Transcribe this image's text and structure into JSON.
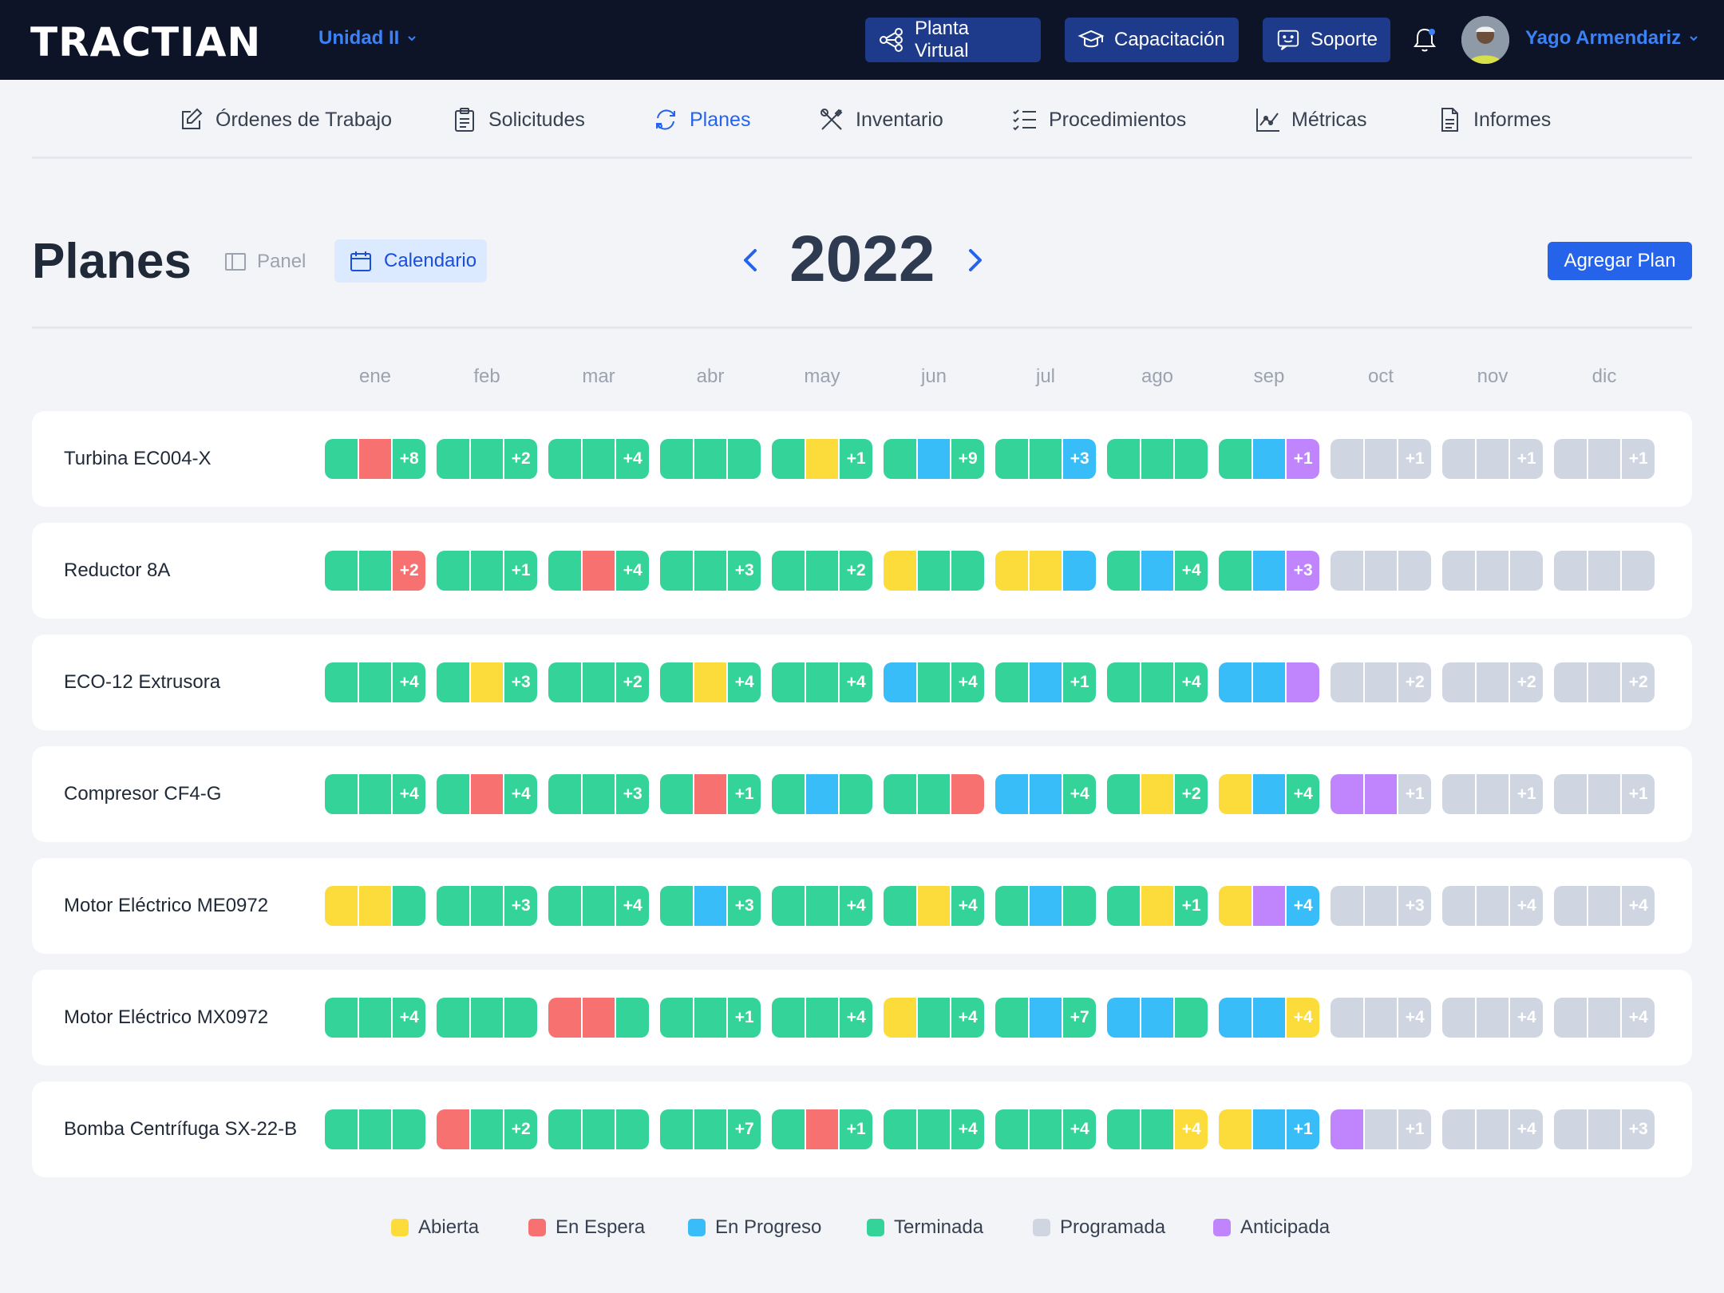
{
  "app": {
    "logo": "TRACTIAN",
    "unit": "Unidad II"
  },
  "topbar": {
    "planta_label": "Planta Virtual",
    "capacitacion_label": "Capacitación",
    "soporte_label": "Soporte",
    "user_name": "Yago Armendariz"
  },
  "nav": [
    {
      "label": "Órdenes de Trabajo",
      "icon": "edit-icon",
      "active": false
    },
    {
      "label": "Solicitudes",
      "icon": "clipboard-icon",
      "active": false
    },
    {
      "label": "Planes",
      "icon": "refresh-icon",
      "active": true
    },
    {
      "label": "Inventario",
      "icon": "tools-icon",
      "active": false
    },
    {
      "label": "Procedimientos",
      "icon": "checklist-icon",
      "active": false
    },
    {
      "label": "Métricas",
      "icon": "chart-icon",
      "active": false
    },
    {
      "label": "Informes",
      "icon": "document-icon",
      "active": false
    }
  ],
  "page": {
    "title": "Planes",
    "view_panel": "Panel",
    "view_calendar": "Calendario",
    "year": "2022",
    "add_plan": "Agregar Plan"
  },
  "colors": {
    "Y": "#fcdc3b",
    "R": "#f87171",
    "B": "#38bdf8",
    "G": "#34d399",
    "S": "#cfd6e1",
    "P": "#c084fc"
  },
  "months": [
    "ene",
    "feb",
    "mar",
    "abr",
    "may",
    "jun",
    "jul",
    "ago",
    "sep",
    "oct",
    "nov",
    "dic"
  ],
  "rows": [
    {
      "name": "Turbina EC004-X",
      "cells": [
        {
          "s": [
            "G",
            "R"
          ],
          "x": "+8",
          "xs": "G"
        },
        {
          "s": [
            "G",
            "G"
          ],
          "x": "+2",
          "xs": "G"
        },
        {
          "s": [
            "G",
            "G"
          ],
          "x": "+4",
          "xs": "G"
        },
        {
          "s": [
            "G",
            "G",
            "G"
          ],
          "x": ""
        },
        {
          "s": [
            "G",
            "Y"
          ],
          "x": "+1",
          "xs": "G"
        },
        {
          "s": [
            "G",
            "B"
          ],
          "x": "+9",
          "xs": "G"
        },
        {
          "s": [
            "G",
            "G"
          ],
          "x": "+3",
          "xs": "B"
        },
        {
          "s": [
            "G",
            "G",
            "G"
          ],
          "x": ""
        },
        {
          "s": [
            "G",
            "B"
          ],
          "x": "+1",
          "xs": "P"
        },
        {
          "s": [
            "S",
            "S"
          ],
          "x": "+1",
          "xs": "S"
        },
        {
          "s": [
            "S",
            "S"
          ],
          "x": "+1",
          "xs": "S"
        },
        {
          "s": [
            "S",
            "S"
          ],
          "x": "+1",
          "xs": "S"
        }
      ]
    },
    {
      "name": "Reductor 8A",
      "cells": [
        {
          "s": [
            "G",
            "G"
          ],
          "x": "+2",
          "xs": "R"
        },
        {
          "s": [
            "G",
            "G"
          ],
          "x": "+1",
          "xs": "G"
        },
        {
          "s": [
            "G",
            "R"
          ],
          "x": "+4",
          "xs": "G"
        },
        {
          "s": [
            "G",
            "G"
          ],
          "x": "+3",
          "xs": "G"
        },
        {
          "s": [
            "G",
            "G"
          ],
          "x": "+2",
          "xs": "G"
        },
        {
          "s": [
            "Y",
            "G",
            "G"
          ],
          "x": ""
        },
        {
          "s": [
            "Y",
            "Y",
            "B"
          ],
          "x": ""
        },
        {
          "s": [
            "G",
            "B"
          ],
          "x": "+4",
          "xs": "G"
        },
        {
          "s": [
            "G",
            "B"
          ],
          "x": "+3",
          "xs": "P"
        },
        {
          "s": [
            "S",
            "S",
            "S"
          ],
          "x": ""
        },
        {
          "s": [
            "S",
            "S",
            "S"
          ],
          "x": ""
        },
        {
          "s": [
            "S",
            "S",
            "S"
          ],
          "x": ""
        }
      ]
    },
    {
      "name": "ECO-12 Extrusora",
      "cells": [
        {
          "s": [
            "G",
            "G"
          ],
          "x": "+4",
          "xs": "G"
        },
        {
          "s": [
            "G",
            "Y"
          ],
          "x": "+3",
          "xs": "G"
        },
        {
          "s": [
            "G",
            "G"
          ],
          "x": "+2",
          "xs": "G"
        },
        {
          "s": [
            "G",
            "Y"
          ],
          "x": "+4",
          "xs": "G"
        },
        {
          "s": [
            "G",
            "G"
          ],
          "x": "+4",
          "xs": "G"
        },
        {
          "s": [
            "B",
            "G"
          ],
          "x": "+4",
          "xs": "G"
        },
        {
          "s": [
            "G",
            "B"
          ],
          "x": "+1",
          "xs": "G"
        },
        {
          "s": [
            "G",
            "G"
          ],
          "x": "+4",
          "xs": "G"
        },
        {
          "s": [
            "B",
            "B",
            "P"
          ],
          "x": ""
        },
        {
          "s": [
            "S",
            "S"
          ],
          "x": "+2",
          "xs": "S"
        },
        {
          "s": [
            "S",
            "S"
          ],
          "x": "+2",
          "xs": "S"
        },
        {
          "s": [
            "S",
            "S"
          ],
          "x": "+2",
          "xs": "S"
        }
      ]
    },
    {
      "name": "Compresor CF4-G",
      "cells": [
        {
          "s": [
            "G",
            "G"
          ],
          "x": "+4",
          "xs": "G"
        },
        {
          "s": [
            "G",
            "R"
          ],
          "x": "+4",
          "xs": "G"
        },
        {
          "s": [
            "G",
            "G"
          ],
          "x": "+3",
          "xs": "G"
        },
        {
          "s": [
            "G",
            "R"
          ],
          "x": "+1",
          "xs": "G"
        },
        {
          "s": [
            "G",
            "B",
            "G"
          ],
          "x": ""
        },
        {
          "s": [
            "G",
            "G",
            "R"
          ],
          "x": ""
        },
        {
          "s": [
            "B",
            "B"
          ],
          "x": "+4",
          "xs": "G"
        },
        {
          "s": [
            "G",
            "Y"
          ],
          "x": "+2",
          "xs": "G"
        },
        {
          "s": [
            "Y",
            "B"
          ],
          "x": "+4",
          "xs": "G"
        },
        {
          "s": [
            "P",
            "P"
          ],
          "x": "+1",
          "xs": "S"
        },
        {
          "s": [
            "S",
            "S"
          ],
          "x": "+1",
          "xs": "S"
        },
        {
          "s": [
            "S",
            "S"
          ],
          "x": "+1",
          "xs": "S"
        }
      ]
    },
    {
      "name": "Motor Eléctrico ME0972",
      "cells": [
        {
          "s": [
            "Y",
            "Y",
            "G"
          ],
          "x": ""
        },
        {
          "s": [
            "G",
            "G"
          ],
          "x": "+3",
          "xs": "G"
        },
        {
          "s": [
            "G",
            "G"
          ],
          "x": "+4",
          "xs": "G"
        },
        {
          "s": [
            "G",
            "B"
          ],
          "x": "+3",
          "xs": "G"
        },
        {
          "s": [
            "G",
            "G"
          ],
          "x": "+4",
          "xs": "G"
        },
        {
          "s": [
            "G",
            "Y"
          ],
          "x": "+4",
          "xs": "G"
        },
        {
          "s": [
            "G",
            "B",
            "G"
          ],
          "x": ""
        },
        {
          "s": [
            "G",
            "Y"
          ],
          "x": "+1",
          "xs": "G"
        },
        {
          "s": [
            "Y",
            "P"
          ],
          "x": "+4",
          "xs": "B"
        },
        {
          "s": [
            "S",
            "S"
          ],
          "x": "+3",
          "xs": "S"
        },
        {
          "s": [
            "S",
            "S"
          ],
          "x": "+4",
          "xs": "S"
        },
        {
          "s": [
            "S",
            "S"
          ],
          "x": "+4",
          "xs": "S"
        }
      ]
    },
    {
      "name": "Motor Eléctrico MX0972",
      "cells": [
        {
          "s": [
            "G",
            "G"
          ],
          "x": "+4",
          "xs": "G"
        },
        {
          "s": [
            "G",
            "G",
            "G"
          ],
          "x": ""
        },
        {
          "s": [
            "R",
            "R",
            "G"
          ],
          "x": ""
        },
        {
          "s": [
            "G",
            "G"
          ],
          "x": "+1",
          "xs": "G"
        },
        {
          "s": [
            "G",
            "G"
          ],
          "x": "+4",
          "xs": "G"
        },
        {
          "s": [
            "Y",
            "G"
          ],
          "x": "+4",
          "xs": "G"
        },
        {
          "s": [
            "G",
            "B"
          ],
          "x": "+7",
          "xs": "G"
        },
        {
          "s": [
            "B",
            "B",
            "G"
          ],
          "x": ""
        },
        {
          "s": [
            "B",
            "B"
          ],
          "x": "+4",
          "xs": "Y"
        },
        {
          "s": [
            "S",
            "S"
          ],
          "x": "+4",
          "xs": "S"
        },
        {
          "s": [
            "S",
            "S"
          ],
          "x": "+4",
          "xs": "S"
        },
        {
          "s": [
            "S",
            "S"
          ],
          "x": "+4",
          "xs": "S"
        }
      ]
    },
    {
      "name": "Bomba Centrífuga SX-22-B",
      "cells": [
        {
          "s": [
            "G",
            "G",
            "G"
          ],
          "x": ""
        },
        {
          "s": [
            "R",
            "G"
          ],
          "x": "+2",
          "xs": "G"
        },
        {
          "s": [
            "G",
            "G",
            "G"
          ],
          "x": ""
        },
        {
          "s": [
            "G",
            "G"
          ],
          "x": "+7",
          "xs": "G"
        },
        {
          "s": [
            "G",
            "R"
          ],
          "x": "+1",
          "xs": "G"
        },
        {
          "s": [
            "G",
            "G"
          ],
          "x": "+4",
          "xs": "G"
        },
        {
          "s": [
            "G",
            "G"
          ],
          "x": "+4",
          "xs": "G"
        },
        {
          "s": [
            "G",
            "G"
          ],
          "x": "+4",
          "xs": "Y"
        },
        {
          "s": [
            "Y",
            "B"
          ],
          "x": "+1",
          "xs": "B"
        },
        {
          "s": [
            "P",
            "S"
          ],
          "x": "+1",
          "xs": "S"
        },
        {
          "s": [
            "S",
            "S"
          ],
          "x": "+4",
          "xs": "S"
        },
        {
          "s": [
            "S",
            "S"
          ],
          "x": "+3",
          "xs": "S"
        }
      ]
    }
  ],
  "legend": [
    {
      "label": "Abierta",
      "color": "Y"
    },
    {
      "label": "En Espera",
      "color": "R"
    },
    {
      "label": "En Progreso",
      "color": "B"
    },
    {
      "label": "Terminada",
      "color": "G"
    },
    {
      "label": "Programada",
      "color": "S"
    },
    {
      "label": "Anticipada",
      "color": "P"
    }
  ]
}
